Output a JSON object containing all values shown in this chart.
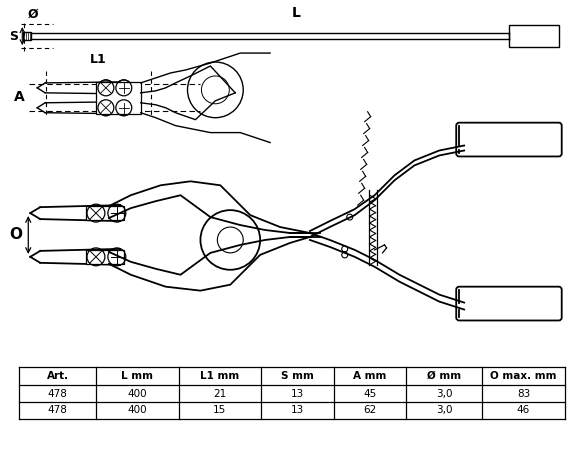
{
  "bg_color": "#ffffff",
  "table_headers": [
    "Art.",
    "L mm",
    "L1 mm",
    "S mm",
    "A mm",
    "Ø mm",
    "O max. mm"
  ],
  "table_rows": [
    [
      "478",
      "400",
      "21",
      "13",
      "45",
      "3,0",
      "83"
    ],
    [
      "478",
      "400",
      "15",
      "13",
      "62",
      "3,0",
      "46"
    ]
  ],
  "labels": {
    "S": "S",
    "diameter": "Ø",
    "L": "L",
    "L1": "L1",
    "A": "A",
    "O": "O"
  },
  "figsize": [
    5.84,
    4.65
  ],
  "dpi": 100
}
